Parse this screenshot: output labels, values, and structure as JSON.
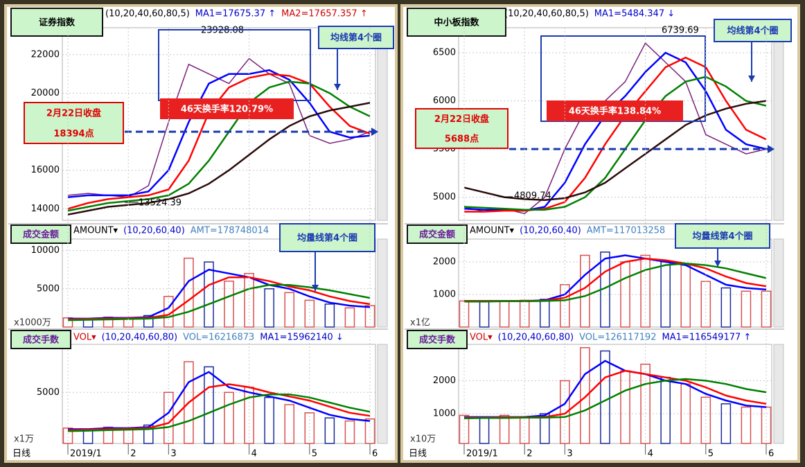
{
  "chart_data": [
    {
      "type": "line",
      "title": "证券指数",
      "header": [
        "(10,20,40,60,80,5)",
        "MA1=17675.37 ↑",
        "MA2=17657.357 ↑"
      ],
      "ylim": [
        13400,
        23400
      ],
      "yticks": [
        14000,
        16000,
        20000,
        22000
      ],
      "grid": true,
      "high_label": "23928.08",
      "low_label": "13524.39",
      "annotations": [
        "均线第4个圈",
        "2月22日收盘",
        "18394点",
        "46天换手率120.79%"
      ],
      "series": [
        {
          "color": "#7a1f7a",
          "values": [
            14700,
            14800,
            14700,
            14600,
            15200,
            18500,
            21500,
            21000,
            20500,
            21800,
            21000,
            20500,
            17800,
            17400,
            17600,
            18000
          ]
        },
        {
          "color": "#0000ff",
          "values": [
            14600,
            14700,
            14700,
            14700,
            14900,
            16000,
            18500,
            20500,
            21000,
            21000,
            21200,
            20700,
            19500,
            18000,
            17700,
            17800
          ]
        },
        {
          "color": "#ff0000",
          "values": [
            14000,
            14300,
            14500,
            14600,
            14700,
            15000,
            16500,
            19000,
            20300,
            20800,
            21000,
            20900,
            20500,
            19300,
            18300,
            17900
          ]
        },
        {
          "color": "#008000",
          "values": [
            13900,
            14100,
            14300,
            14400,
            14500,
            14700,
            15300,
            16500,
            18000,
            19500,
            20300,
            20600,
            20500,
            20000,
            19300,
            18800
          ]
        },
        {
          "color": "#2a0a0a",
          "values": [
            13700,
            13900,
            14100,
            14200,
            14300,
            14500,
            14800,
            15300,
            16000,
            16800,
            17600,
            18300,
            18800,
            19100,
            19300,
            19500
          ]
        }
      ]
    },
    {
      "type": "bar",
      "title": "成交金额",
      "header": [
        "AMOUNT▾",
        "(10,20,60,40)",
        "AMT=178748014"
      ],
      "unit_label": "x1000万",
      "ylim": [
        0,
        11500
      ],
      "yticks": [
        5000,
        10000
      ],
      "grid": true,
      "annotations": [
        "均量线第4个圈"
      ],
      "color": "#d85050",
      "values": [
        1200,
        1000,
        1300,
        1100,
        1500,
        4000,
        9000,
        8500,
        6000,
        7000,
        5000,
        4500,
        3500,
        3000,
        2500,
        2800
      ],
      "series": [
        {
          "color": "#0000ff",
          "values": [
            1100,
            1100,
            1200,
            1200,
            1300,
            2500,
            6000,
            7500,
            7000,
            6500,
            5500,
            5000,
            4000,
            3200,
            2800,
            2600
          ]
        },
        {
          "color": "#ff0000",
          "values": [
            1000,
            1050,
            1100,
            1150,
            1200,
            1600,
            3500,
            5500,
            6500,
            6500,
            6000,
            5300,
            4800,
            4000,
            3400,
            3000
          ]
        },
        {
          "color": "#008000",
          "values": [
            900,
            950,
            1000,
            1050,
            1100,
            1300,
            2000,
            3000,
            4000,
            5000,
            5500,
            5500,
            5200,
            4800,
            4300,
            3800
          ]
        }
      ]
    },
    {
      "type": "bar",
      "title": "成交手数",
      "header": [
        "VOL▾",
        "(10,20,40,60,80)",
        "VOL=16216873",
        "MA1=15962140 ↓"
      ],
      "unit_label": "x1万",
      "ylim": [
        0,
        9700
      ],
      "yticks": [
        5000
      ],
      "grid": true,
      "x_label": "日线",
      "categories": [
        "2019/1",
        null,
        null,
        "2",
        null,
        "3",
        null,
        null,
        null,
        "4",
        null,
        null,
        "5",
        null,
        null,
        "6"
      ],
      "color": "#d85050",
      "values": [
        1500,
        1300,
        1600,
        1400,
        1800,
        5000,
        8000,
        7500,
        5000,
        5500,
        4500,
        3800,
        3000,
        2500,
        2200,
        2400
      ],
      "series": [
        {
          "color": "#0000ff",
          "values": [
            1400,
            1400,
            1500,
            1500,
            1600,
            3000,
            6000,
            7000,
            5500,
            5000,
            4600,
            4200,
            3500,
            2800,
            2400,
            2200
          ]
        },
        {
          "color": "#ff0000",
          "values": [
            1300,
            1350,
            1400,
            1450,
            1500,
            2000,
            4000,
            5500,
            5800,
            5500,
            5000,
            4600,
            4200,
            3600,
            3000,
            2700
          ]
        },
        {
          "color": "#008000",
          "values": [
            1200,
            1250,
            1300,
            1350,
            1400,
            1600,
            2200,
            3000,
            3800,
            4500,
            4800,
            4800,
            4500,
            4000,
            3500,
            3100
          ]
        }
      ]
    },
    {
      "type": "line",
      "title": "中小板指数",
      "header": [
        "(10,20,40,60,80,5)",
        "MA1=5484.347 ↓"
      ],
      "ylim": [
        4760,
        6760
      ],
      "yticks": [
        5000,
        5500,
        6000,
        6500
      ],
      "grid": true,
      "high_label": "6739.69",
      "low_label": "4809.74",
      "annotations": [
        "均线第4个圈",
        "2月22日收盘",
        "5688点",
        "46天换手率138.84%"
      ],
      "series": [
        {
          "color": "#7a1f7a",
          "values": [
            4900,
            4850,
            4880,
            4830,
            5000,
            5500,
            5900,
            6000,
            6200,
            6600,
            6400,
            6200,
            5650,
            5550,
            5450,
            5500
          ]
        },
        {
          "color": "#0000ff",
          "values": [
            4880,
            4870,
            4870,
            4860,
            4900,
            5150,
            5550,
            5850,
            6050,
            6300,
            6500,
            6400,
            6100,
            5700,
            5550,
            5500
          ]
        },
        {
          "color": "#ff0000",
          "values": [
            4850,
            4850,
            4860,
            4860,
            4880,
            4950,
            5200,
            5550,
            5850,
            6100,
            6350,
            6450,
            6350,
            6000,
            5700,
            5600
          ]
        },
        {
          "color": "#008000",
          "values": [
            4900,
            4890,
            4880,
            4870,
            4870,
            4900,
            5000,
            5200,
            5500,
            5800,
            6050,
            6200,
            6250,
            6150,
            6000,
            5950
          ]
        },
        {
          "color": "#2a0a0a",
          "values": [
            5100,
            5050,
            5000,
            4980,
            4970,
            4990,
            5050,
            5150,
            5300,
            5450,
            5600,
            5750,
            5850,
            5920,
            5970,
            6000
          ]
        }
      ]
    },
    {
      "type": "bar",
      "title": "成交金额",
      "header": [
        "AMOUNT▾",
        "(10,20,60,40)",
        "AMT=117013258"
      ],
      "unit_label": "x1亿",
      "ylim": [
        0,
        2700
      ],
      "yticks": [
        1000,
        2000
      ],
      "grid": true,
      "annotations": [
        "均量线第4个圈"
      ],
      "color": "#d85050",
      "values": [
        800,
        800,
        800,
        820,
        850,
        1300,
        2200,
        2300,
        2000,
        2200,
        2000,
        1900,
        1400,
        1200,
        1100,
        1100
      ],
      "series": [
        {
          "color": "#0000ff",
          "values": [
            800,
            800,
            800,
            800,
            820,
            1000,
            1600,
            2100,
            2200,
            2100,
            2000,
            1900,
            1600,
            1300,
            1200,
            1150
          ]
        },
        {
          "color": "#ff0000",
          "values": [
            800,
            800,
            800,
            800,
            810,
            900,
            1200,
            1700,
            2000,
            2100,
            2050,
            1950,
            1800,
            1550,
            1350,
            1250
          ]
        },
        {
          "color": "#008000",
          "values": [
            780,
            780,
            790,
            790,
            800,
            820,
            950,
            1200,
            1500,
            1750,
            1900,
            1950,
            1900,
            1800,
            1650,
            1500
          ]
        }
      ]
    },
    {
      "type": "bar",
      "title": "成交手数",
      "header": [
        "VOL▾",
        "(10,20,40,60,80)",
        "VOL=126117192",
        "MA1=116549177 ↑"
      ],
      "unit_label": "x10万",
      "ylim": [
        100,
        3100
      ],
      "yticks": [
        1000,
        2000
      ],
      "grid": true,
      "x_label": "日线",
      "categories": [
        "2019/1",
        null,
        null,
        "2",
        null,
        "3",
        null,
        null,
        null,
        "4",
        null,
        null,
        "5",
        null,
        null,
        "6"
      ],
      "color": "#d85050",
      "values": [
        950,
        900,
        950,
        900,
        1000,
        2000,
        3000,
        2900,
        2300,
        2500,
        2100,
        1900,
        1500,
        1300,
        1200,
        1200
      ],
      "series": [
        {
          "color": "#0000ff",
          "values": [
            900,
            900,
            900,
            900,
            950,
            1300,
            2200,
            2600,
            2300,
            2200,
            2000,
            1900,
            1600,
            1400,
            1250,
            1200
          ]
        },
        {
          "color": "#ff0000",
          "values": [
            880,
            880,
            890,
            890,
            900,
            1000,
            1500,
            2100,
            2300,
            2200,
            2100,
            2000,
            1800,
            1550,
            1400,
            1300
          ]
        },
        {
          "color": "#008000",
          "values": [
            860,
            870,
            870,
            880,
            880,
            900,
            1100,
            1400,
            1700,
            1900,
            2000,
            2050,
            2000,
            1900,
            1750,
            1650
          ]
        }
      ]
    }
  ]
}
